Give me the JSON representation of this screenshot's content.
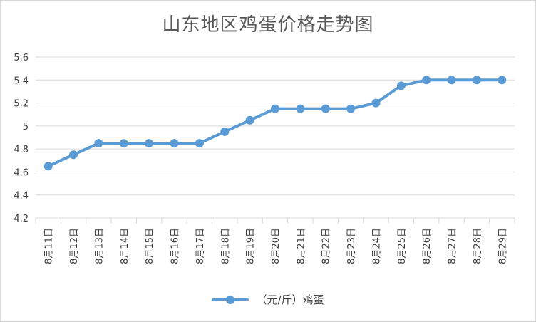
{
  "chart_data": {
    "type": "line",
    "title": "山东地区鸡蛋价格走势图",
    "categories": [
      "8月11日",
      "8月12日",
      "8月13日",
      "8月14日",
      "8月15日",
      "8月16日",
      "8月17日",
      "8月18日",
      "8月19日",
      "8月20日",
      "8月21日",
      "8月22日",
      "8月23日",
      "8月24日",
      "8月25日",
      "8月26日",
      "8月27日",
      "8月28日",
      "8月29日"
    ],
    "series": [
      {
        "name": "（元/斤）鸡蛋",
        "values": [
          4.65,
          4.75,
          4.85,
          4.85,
          4.85,
          4.85,
          4.85,
          4.95,
          5.05,
          5.15,
          5.15,
          5.15,
          5.15,
          5.2,
          5.35,
          5.4,
          5.4,
          5.4,
          5.4
        ]
      }
    ],
    "ylim": [
      4.2,
      5.6
    ],
    "yticks": [
      "4.2",
      "4.4",
      "4.6",
      "4.8",
      "5",
      "5.2",
      "5.4",
      "5.6"
    ],
    "xlabel": "",
    "ylabel": "",
    "grid": true,
    "legend_position": "bottom",
    "color": "#5b9bd5"
  }
}
